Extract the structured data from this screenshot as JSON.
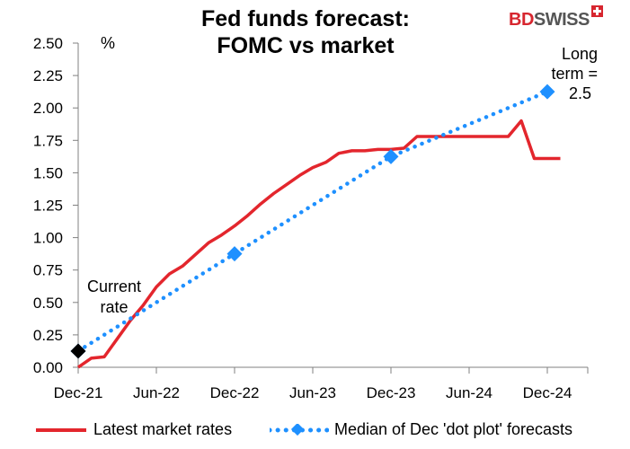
{
  "chart_data": {
    "type": "line",
    "title": "Fed funds forecast:\nFOMC vs market",
    "title_lines": [
      "Fed funds forecast:",
      "FOMC vs market"
    ],
    "ylabel": "%",
    "xlabel": "",
    "ylim": [
      0,
      2.5
    ],
    "y_ticks": [
      "0.00",
      "0.25",
      "0.50",
      "0.75",
      "1.00",
      "1.25",
      "1.50",
      "1.75",
      "2.00",
      "2.25",
      "2.50"
    ],
    "x_ticks": [
      "Dec-21",
      "Jun-22",
      "Dec-22",
      "Jun-23",
      "Dec-23",
      "Jun-24",
      "Dec-24"
    ],
    "grid": false,
    "legend_position": "bottom",
    "series": [
      {
        "name": "Latest market rates",
        "style": "solid",
        "color": "#e3262d",
        "points": [
          [
            "2021-12",
            0.0
          ],
          [
            "2022-01",
            0.07
          ],
          [
            "2022-02",
            0.08
          ],
          [
            "2022-03",
            0.22
          ],
          [
            "2022-04",
            0.36
          ],
          [
            "2022-05",
            0.48
          ],
          [
            "2022-06",
            0.62
          ],
          [
            "2022-07",
            0.72
          ],
          [
            "2022-08",
            0.78
          ],
          [
            "2022-09",
            0.87
          ],
          [
            "2022-10",
            0.96
          ],
          [
            "2022-11",
            1.02
          ],
          [
            "2022-12",
            1.09
          ],
          [
            "2023-01",
            1.17
          ],
          [
            "2023-02",
            1.26
          ],
          [
            "2023-03",
            1.34
          ],
          [
            "2023-04",
            1.41
          ],
          [
            "2023-05",
            1.48
          ],
          [
            "2023-06",
            1.54
          ],
          [
            "2023-07",
            1.58
          ],
          [
            "2023-08",
            1.65
          ],
          [
            "2023-09",
            1.67
          ],
          [
            "2023-10",
            1.67
          ],
          [
            "2023-11",
            1.68
          ],
          [
            "2023-12",
            1.68
          ],
          [
            "2024-01",
            1.69
          ],
          [
            "2024-02",
            1.78
          ],
          [
            "2024-03",
            1.78
          ],
          [
            "2024-04",
            1.78
          ],
          [
            "2024-05",
            1.78
          ],
          [
            "2024-06",
            1.78
          ],
          [
            "2024-07",
            1.78
          ],
          [
            "2024-08",
            1.78
          ],
          [
            "2024-09",
            1.78
          ],
          [
            "2024-10",
            1.9
          ],
          [
            "2024-11",
            1.61
          ],
          [
            "2024-12",
            1.61
          ],
          [
            "2025-01",
            1.61
          ]
        ]
      },
      {
        "name": "Median of Dec 'dot plot' forecasts",
        "style": "dotted",
        "color": "#1e90ff",
        "points": [
          [
            "2021-12",
            0.125
          ],
          [
            "2022-12",
            0.875
          ],
          [
            "2023-12",
            1.625
          ],
          [
            "2024-12",
            2.125
          ]
        ]
      }
    ],
    "current_rate_point": {
      "x": "2021-12",
      "y": 0.125,
      "color": "#000000"
    },
    "annotations": [
      {
        "lines": [
          "Current",
          "rate"
        ],
        "anchor": "current_rate"
      },
      {
        "lines": [
          "Long",
          "term =",
          "2.5"
        ],
        "anchor": "long_term"
      }
    ]
  },
  "branding": {
    "logo_part1": "BD",
    "logo_part2": "SWISS",
    "color_primary": "#d7262f",
    "color_secondary": "#555555"
  }
}
